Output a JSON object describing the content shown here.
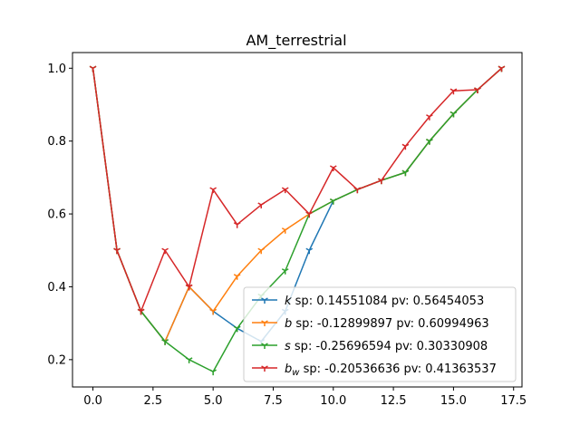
{
  "chart_data": {
    "type": "line",
    "title": "AM_terrestrial",
    "xlabel": "",
    "ylabel": "",
    "xlim": [
      -0.85,
      17.85
    ],
    "ylim": [
      0.125,
      1.043
    ],
    "xticks": [
      0,
      2.5,
      5,
      7.5,
      10,
      12.5,
      15,
      17.5
    ],
    "xtick_labels": [
      "0.0",
      "2.5",
      "5.0",
      "7.5",
      "10.0",
      "12.5",
      "15.0",
      "17.5"
    ],
    "yticks": [
      0.2,
      0.4,
      0.6,
      0.8,
      1.0
    ],
    "ytick_labels": [
      "0.2",
      "0.4",
      "0.6",
      "0.8",
      "1.0"
    ],
    "grid": false,
    "legend_position": "lower-right",
    "x": [
      0,
      1,
      2,
      3,
      4,
      5,
      6,
      7,
      8,
      9,
      10,
      11,
      12,
      13,
      14,
      15,
      16,
      17
    ],
    "series": [
      {
        "key": "k",
        "legend_symbol": "k",
        "legend_subscript": "",
        "legend_text": " sp: 0.14551084 pv: 0.56454053",
        "color": "#1f77b4",
        "values": [
          1.0,
          0.5,
          0.333,
          0.25,
          0.4,
          0.333,
          0.286,
          0.25,
          0.333,
          0.5,
          0.636,
          0.667,
          0.692,
          0.714,
          0.8,
          0.875,
          0.941,
          1.0
        ]
      },
      {
        "key": "b",
        "legend_symbol": "b",
        "legend_subscript": "",
        "legend_text": " sp: -0.12899897 pv: 0.60994963",
        "color": "#ff7f0e",
        "values": [
          1.0,
          0.5,
          0.333,
          0.25,
          0.4,
          0.333,
          0.429,
          0.5,
          0.556,
          0.6,
          0.636,
          0.667,
          0.692,
          0.714,
          0.8,
          0.875,
          0.941,
          1.0
        ]
      },
      {
        "key": "s",
        "legend_symbol": "s",
        "legend_subscript": "",
        "legend_text": " sp: -0.25696594 pv: 0.30330908",
        "color": "#2ca02c",
        "values": [
          1.0,
          0.5,
          0.333,
          0.25,
          0.2,
          0.167,
          0.286,
          0.375,
          0.444,
          0.6,
          0.636,
          0.667,
          0.692,
          0.714,
          0.8,
          0.875,
          0.941,
          1.0
        ]
      },
      {
        "key": "bw",
        "legend_symbol": "b",
        "legend_subscript": "w",
        "legend_text": " sp: -0.20536636 pv: 0.41363537",
        "color": "#d62728",
        "values": [
          1.0,
          0.5,
          0.333,
          0.5,
          0.4,
          0.667,
          0.571,
          0.625,
          0.667,
          0.6,
          0.727,
          0.667,
          0.692,
          0.786,
          0.867,
          0.938,
          0.941,
          1.0
        ]
      }
    ]
  }
}
